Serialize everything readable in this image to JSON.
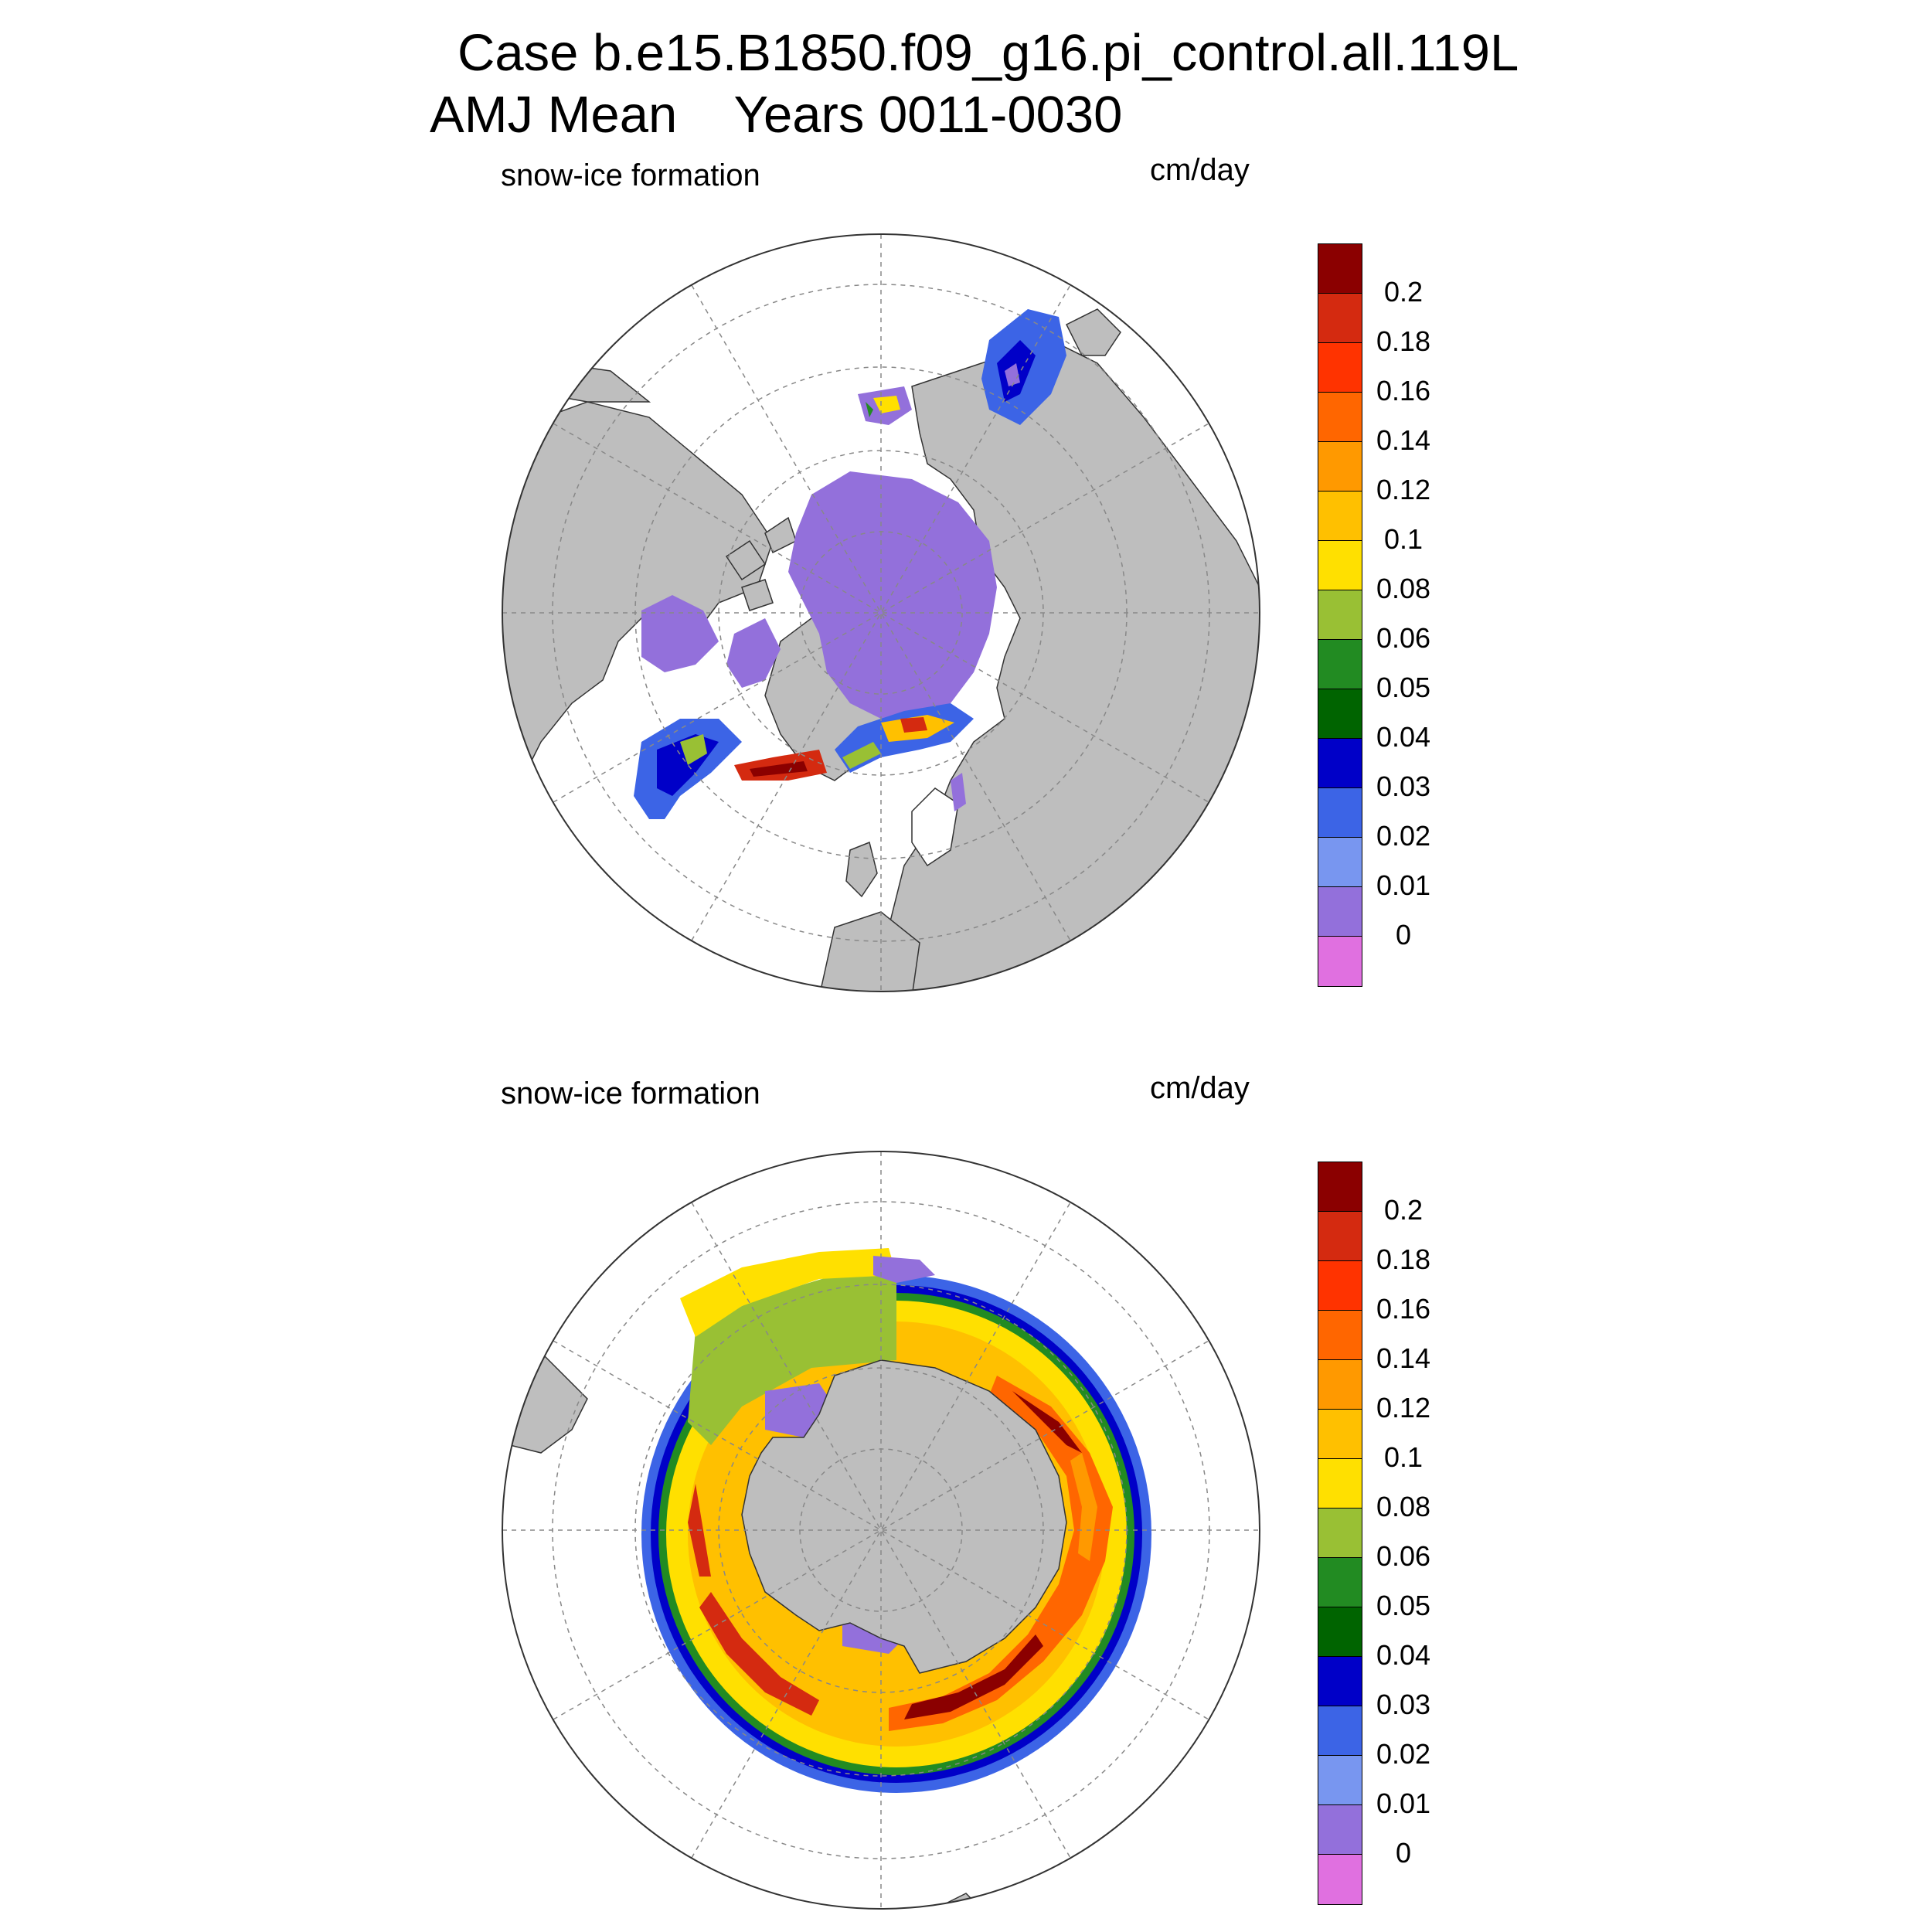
{
  "header": {
    "case_line": "Case b.e15.B1850.f09_g16.pi_control.all.119L",
    "period_line": "AMJ Mean    Years 0011-0030"
  },
  "panels": [
    {
      "id": "north",
      "left_label": "snow-ice formation",
      "units_label": "cm/day",
      "hemisphere": "Northern Hemisphere polar stereographic"
    },
    {
      "id": "south",
      "left_label": "snow-ice formation",
      "units_label": "cm/day",
      "hemisphere": "Southern Hemisphere polar stereographic"
    }
  ],
  "colorbar": {
    "tick_labels": [
      "0.2",
      "0.18",
      "0.16",
      "0.14",
      "0.12",
      "0.1",
      "0.08",
      "0.06",
      "0.05",
      "0.04",
      "0.03",
      "0.02",
      "0.01",
      "0"
    ],
    "colors_top_to_bottom": [
      "#8b0000",
      "#d42a10",
      "#ff3300",
      "#ff6600",
      "#ff9900",
      "#ffc000",
      "#ffe000",
      "#99c034",
      "#228b22",
      "#006400",
      "#0000c8",
      "#3c64e6",
      "#7896f0",
      "#9370db",
      "#e070e0"
    ]
  },
  "map_colors": {
    "land": "#bebebe",
    "ocean": "#ffffff",
    "grid": "#888888"
  }
}
